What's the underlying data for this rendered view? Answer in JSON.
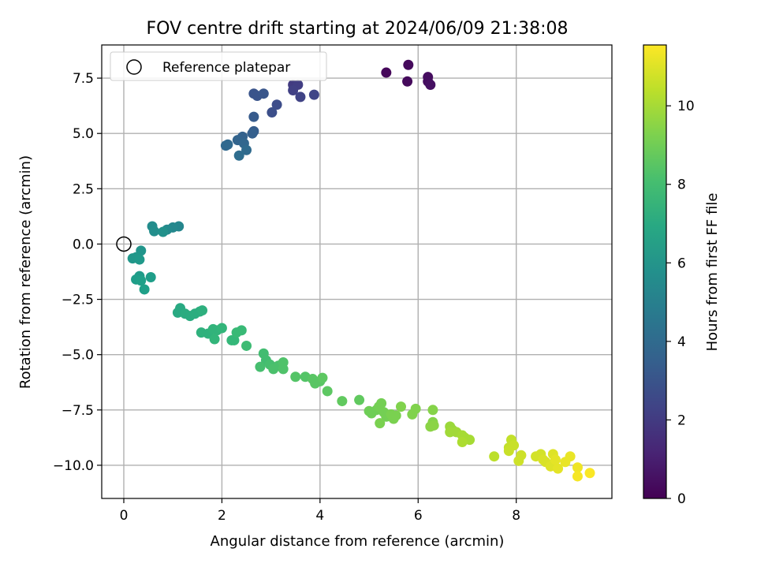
{
  "chart_data": {
    "type": "scatter",
    "title": "FOV centre drift starting at 2024/06/09 21:38:08",
    "xlabel": "Angular distance from reference (arcmin)",
    "ylabel": "Rotation from reference (arcmin)",
    "xlim": [
      -0.45,
      9.95
    ],
    "ylim": [
      -11.5,
      9.0
    ],
    "xticks": [
      0,
      2,
      4,
      6,
      8
    ],
    "yticks": [
      -10.0,
      -7.5,
      -5.0,
      -2.5,
      0.0,
      2.5,
      5.0,
      7.5
    ],
    "grid": true,
    "legend": {
      "location": "upper-left",
      "entries": [
        "Reference platepar"
      ]
    },
    "reference_point": {
      "x": 0.0,
      "y": 0.0
    },
    "colorbar": {
      "label": "Hours from first FF file",
      "range": [
        0,
        11.55
      ],
      "ticks": [
        0,
        2,
        4,
        6,
        8,
        10
      ],
      "colormap": "viridis"
    },
    "points": [
      {
        "x": 5.35,
        "y": 7.75,
        "h": 0.2
      },
      {
        "x": 5.8,
        "y": 8.1,
        "h": 0.3
      },
      {
        "x": 5.78,
        "y": 7.35,
        "h": 0.3
      },
      {
        "x": 6.2,
        "y": 7.55,
        "h": 0.4
      },
      {
        "x": 6.2,
        "y": 7.35,
        "h": 0.4
      },
      {
        "x": 6.25,
        "y": 7.2,
        "h": 0.5
      },
      {
        "x": 3.45,
        "y": 7.2,
        "h": 2.0
      },
      {
        "x": 3.55,
        "y": 7.2,
        "h": 2.1
      },
      {
        "x": 3.45,
        "y": 6.95,
        "h": 2.2
      },
      {
        "x": 3.6,
        "y": 6.65,
        "h": 2.3
      },
      {
        "x": 3.88,
        "y": 6.75,
        "h": 2.4
      },
      {
        "x": 3.12,
        "y": 6.3,
        "h": 2.7
      },
      {
        "x": 3.02,
        "y": 5.95,
        "h": 2.8
      },
      {
        "x": 2.65,
        "y": 6.8,
        "h": 3.0
      },
      {
        "x": 2.72,
        "y": 6.7,
        "h": 3.0
      },
      {
        "x": 2.85,
        "y": 6.8,
        "h": 3.1
      },
      {
        "x": 2.65,
        "y": 5.75,
        "h": 3.3
      },
      {
        "x": 2.65,
        "y": 5.1,
        "h": 3.4
      },
      {
        "x": 2.62,
        "y": 5.0,
        "h": 3.5
      },
      {
        "x": 2.42,
        "y": 4.85,
        "h": 3.6
      },
      {
        "x": 2.32,
        "y": 4.7,
        "h": 3.7
      },
      {
        "x": 2.45,
        "y": 4.55,
        "h": 3.8
      },
      {
        "x": 2.08,
        "y": 4.45,
        "h": 3.9
      },
      {
        "x": 2.12,
        "y": 4.5,
        "h": 3.9
      },
      {
        "x": 2.5,
        "y": 4.25,
        "h": 4.0
      },
      {
        "x": 2.35,
        "y": 4.0,
        "h": 4.1
      },
      {
        "x": 1.12,
        "y": 0.8,
        "h": 5.3
      },
      {
        "x": 1.0,
        "y": 0.75,
        "h": 5.4
      },
      {
        "x": 0.88,
        "y": 0.65,
        "h": 5.5
      },
      {
        "x": 0.58,
        "y": 0.8,
        "h": 5.6
      },
      {
        "x": 0.62,
        "y": 0.58,
        "h": 5.7
      },
      {
        "x": 0.8,
        "y": 0.55,
        "h": 5.8
      },
      {
        "x": 0.35,
        "y": -0.3,
        "h": 6.0
      },
      {
        "x": 0.18,
        "y": -0.65,
        "h": 6.1
      },
      {
        "x": 0.25,
        "y": -0.6,
        "h": 6.1
      },
      {
        "x": 0.32,
        "y": -0.7,
        "h": 6.2
      },
      {
        "x": 0.32,
        "y": -1.45,
        "h": 6.3
      },
      {
        "x": 0.55,
        "y": -1.5,
        "h": 6.4
      },
      {
        "x": 0.25,
        "y": -1.6,
        "h": 6.4
      },
      {
        "x": 0.35,
        "y": -1.65,
        "h": 6.5
      },
      {
        "x": 0.42,
        "y": -2.05,
        "h": 6.5
      },
      {
        "x": 1.15,
        "y": -2.9,
        "h": 7.0
      },
      {
        "x": 1.1,
        "y": -3.1,
        "h": 7.0
      },
      {
        "x": 1.25,
        "y": -3.15,
        "h": 7.1
      },
      {
        "x": 1.35,
        "y": -3.25,
        "h": 7.1
      },
      {
        "x": 1.45,
        "y": -3.15,
        "h": 7.2
      },
      {
        "x": 1.55,
        "y": -3.05,
        "h": 7.2
      },
      {
        "x": 1.6,
        "y": -3.0,
        "h": 7.3
      },
      {
        "x": 1.58,
        "y": -4.0,
        "h": 7.4
      },
      {
        "x": 1.72,
        "y": -4.05,
        "h": 7.4
      },
      {
        "x": 1.82,
        "y": -3.85,
        "h": 7.5
      },
      {
        "x": 1.9,
        "y": -3.9,
        "h": 7.5
      },
      {
        "x": 2.0,
        "y": -3.8,
        "h": 7.6
      },
      {
        "x": 1.85,
        "y": -4.3,
        "h": 7.6
      },
      {
        "x": 2.2,
        "y": -4.35,
        "h": 7.7
      },
      {
        "x": 2.25,
        "y": -4.35,
        "h": 7.7
      },
      {
        "x": 2.3,
        "y": -4.0,
        "h": 7.8
      },
      {
        "x": 2.4,
        "y": -3.9,
        "h": 7.8
      },
      {
        "x": 2.5,
        "y": -4.6,
        "h": 7.9
      },
      {
        "x": 2.85,
        "y": -4.95,
        "h": 8.0
      },
      {
        "x": 2.9,
        "y": -5.25,
        "h": 8.0
      },
      {
        "x": 2.98,
        "y": -5.45,
        "h": 8.1
      },
      {
        "x": 2.78,
        "y": -5.55,
        "h": 8.1
      },
      {
        "x": 3.05,
        "y": -5.65,
        "h": 8.2
      },
      {
        "x": 3.15,
        "y": -5.5,
        "h": 8.2
      },
      {
        "x": 3.25,
        "y": -5.35,
        "h": 8.3
      },
      {
        "x": 3.25,
        "y": -5.65,
        "h": 8.3
      },
      {
        "x": 3.5,
        "y": -6.0,
        "h": 8.4
      },
      {
        "x": 3.7,
        "y": -6.0,
        "h": 8.4
      },
      {
        "x": 3.85,
        "y": -6.1,
        "h": 8.5
      },
      {
        "x": 3.9,
        "y": -6.3,
        "h": 8.5
      },
      {
        "x": 4.0,
        "y": -6.2,
        "h": 8.5
      },
      {
        "x": 4.05,
        "y": -6.05,
        "h": 8.6
      },
      {
        "x": 4.15,
        "y": -6.65,
        "h": 8.6
      },
      {
        "x": 4.45,
        "y": -7.1,
        "h": 8.7
      },
      {
        "x": 4.8,
        "y": -7.05,
        "h": 8.7
      },
      {
        "x": 5.0,
        "y": -7.55,
        "h": 9.0
      },
      {
        "x": 5.05,
        "y": -7.65,
        "h": 9.0
      },
      {
        "x": 5.15,
        "y": -7.5,
        "h": 9.0
      },
      {
        "x": 5.2,
        "y": -7.35,
        "h": 9.1
      },
      {
        "x": 5.25,
        "y": -7.2,
        "h": 9.1
      },
      {
        "x": 5.3,
        "y": -7.6,
        "h": 9.1
      },
      {
        "x": 5.35,
        "y": -7.8,
        "h": 9.1
      },
      {
        "x": 5.45,
        "y": -7.7,
        "h": 9.2
      },
      {
        "x": 5.22,
        "y": -8.1,
        "h": 9.2
      },
      {
        "x": 5.5,
        "y": -7.9,
        "h": 9.2
      },
      {
        "x": 5.55,
        "y": -7.75,
        "h": 9.2
      },
      {
        "x": 5.65,
        "y": -7.35,
        "h": 9.3
      },
      {
        "x": 5.88,
        "y": -7.7,
        "h": 9.3
      },
      {
        "x": 5.95,
        "y": -7.45,
        "h": 9.3
      },
      {
        "x": 6.3,
        "y": -7.5,
        "h": 9.4
      },
      {
        "x": 6.3,
        "y": -8.05,
        "h": 9.4
      },
      {
        "x": 6.25,
        "y": -8.25,
        "h": 9.5
      },
      {
        "x": 6.32,
        "y": -8.2,
        "h": 9.5
      },
      {
        "x": 6.65,
        "y": -8.25,
        "h": 9.8
      },
      {
        "x": 6.7,
        "y": -8.4,
        "h": 9.8
      },
      {
        "x": 6.65,
        "y": -8.5,
        "h": 9.9
      },
      {
        "x": 6.78,
        "y": -8.5,
        "h": 9.9
      },
      {
        "x": 6.9,
        "y": -8.65,
        "h": 10.0
      },
      {
        "x": 6.95,
        "y": -8.75,
        "h": 10.0
      },
      {
        "x": 7.05,
        "y": -8.85,
        "h": 10.0
      },
      {
        "x": 6.9,
        "y": -8.95,
        "h": 10.1
      },
      {
        "x": 7.55,
        "y": -9.6,
        "h": 10.4
      },
      {
        "x": 7.85,
        "y": -9.2,
        "h": 10.5
      },
      {
        "x": 7.9,
        "y": -8.85,
        "h": 10.5
      },
      {
        "x": 7.95,
        "y": -9.1,
        "h": 10.6
      },
      {
        "x": 7.85,
        "y": -9.35,
        "h": 10.6
      },
      {
        "x": 8.1,
        "y": -9.55,
        "h": 10.7
      },
      {
        "x": 8.05,
        "y": -9.8,
        "h": 10.7
      },
      {
        "x": 8.4,
        "y": -9.6,
        "h": 10.8
      },
      {
        "x": 8.5,
        "y": -9.5,
        "h": 10.8
      },
      {
        "x": 8.55,
        "y": -9.75,
        "h": 10.9
      },
      {
        "x": 8.6,
        "y": -9.85,
        "h": 10.9
      },
      {
        "x": 8.75,
        "y": -9.5,
        "h": 11.0
      },
      {
        "x": 8.7,
        "y": -10.05,
        "h": 11.0
      },
      {
        "x": 8.85,
        "y": -10.15,
        "h": 11.1
      },
      {
        "x": 8.8,
        "y": -9.75,
        "h": 11.1
      },
      {
        "x": 9.0,
        "y": -9.85,
        "h": 11.2
      },
      {
        "x": 9.1,
        "y": -9.6,
        "h": 11.2
      },
      {
        "x": 9.25,
        "y": -10.1,
        "h": 11.3
      },
      {
        "x": 9.25,
        "y": -10.5,
        "h": 11.4
      },
      {
        "x": 9.5,
        "y": -10.35,
        "h": 11.5
      }
    ]
  }
}
